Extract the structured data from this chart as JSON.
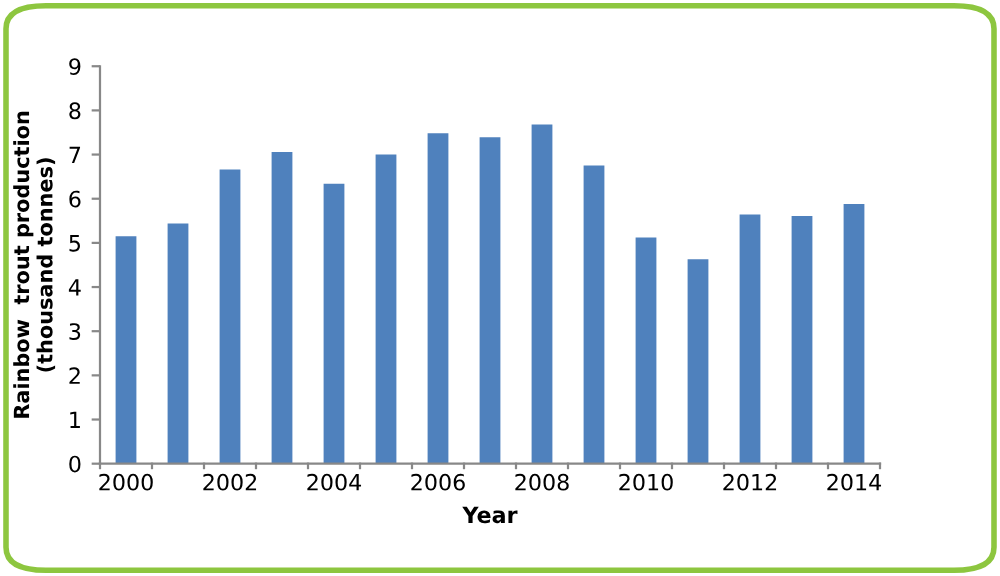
{
  "chart_data": {
    "type": "bar",
    "xlabel": "Year",
    "ylabel": "Rainbow  trout production\n(thousand tonnes)",
    "categories": [
      "2000",
      null,
      "2002",
      null,
      "2004",
      null,
      "2006",
      null,
      "2008",
      null,
      "2010",
      null,
      "2012",
      null,
      "2014"
    ],
    "series": [
      {
        "color": "#4f81bd",
        "values": [
          5.15,
          5.44,
          6.66,
          7.06,
          6.34,
          7.0,
          7.48,
          7.39,
          7.68,
          6.75,
          5.12,
          4.63,
          5.64,
          5.61,
          5.88
        ]
      }
    ],
    "ylim": [
      0,
      9
    ],
    "yticks": [
      0,
      1,
      2,
      3,
      4,
      5,
      6,
      7,
      8,
      9
    ],
    "grid": false,
    "legend": false
  }
}
